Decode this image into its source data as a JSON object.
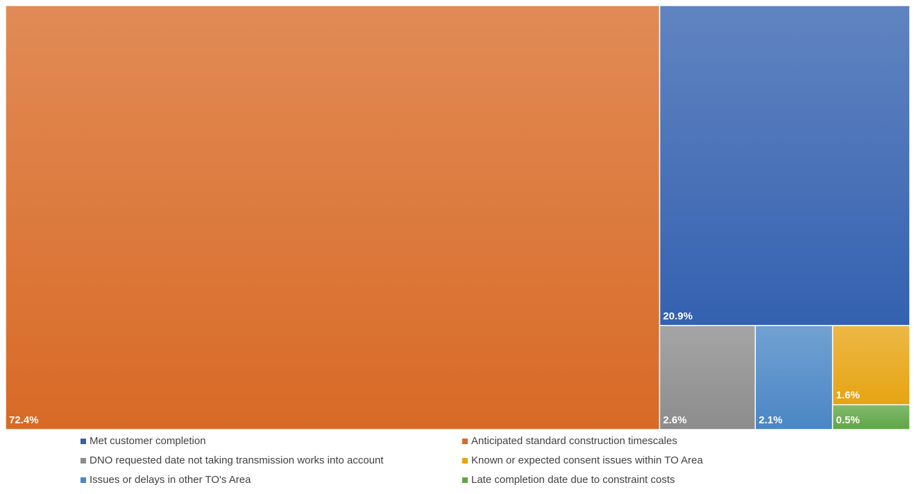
{
  "chart_data": {
    "type": "treemap",
    "series": [
      {
        "name": "Met customer completion",
        "value": 20.9,
        "label": "20.9%",
        "color": "#3461B0"
      },
      {
        "name": "Anticipated standard construction timescales",
        "value": 72.4,
        "label": "72.4%",
        "color": "#D86A26"
      },
      {
        "name": "DNO requested date not taking transmission works into account",
        "value": 2.6,
        "label": "2.6%",
        "color": "#8C8C8C"
      },
      {
        "name": "Known or expected consent issues within TO Area",
        "value": 1.6,
        "label": "1.6%",
        "color": "#E6A412"
      },
      {
        "name": "Issues or delays in other TO's Area",
        "value": 2.1,
        "label": "2.1%",
        "color": "#4A86C5"
      },
      {
        "name": "Late completion date due to constraint costs",
        "value": 0.5,
        "label": "0.5%",
        "color": "#5FA644"
      }
    ],
    "legend_position": "bottom"
  }
}
